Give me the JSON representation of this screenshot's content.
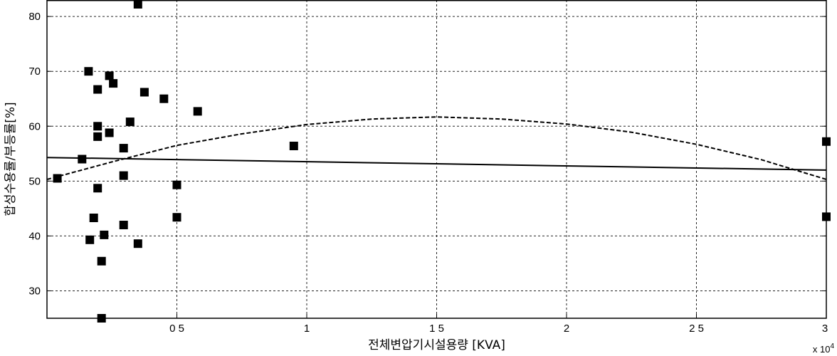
{
  "chart_data": {
    "type": "scatter",
    "title": "",
    "xlabel": "전체변압기시설용량 [KVA]",
    "ylabel": "합성수용률/부등률[%]",
    "x_multiplier_label": "x 10",
    "x_multiplier_exponent": "4",
    "xlim": [
      0,
      30000
    ],
    "ylim": [
      25,
      83
    ],
    "x_ticks": [
      {
        "value": 5000,
        "label": "0 5"
      },
      {
        "value": 10000,
        "label": "1"
      },
      {
        "value": 15000,
        "label": "1 5"
      },
      {
        "value": 20000,
        "label": "2"
      },
      {
        "value": 25000,
        "label": "2 5"
      },
      {
        "value": 30000,
        "label": "3"
      }
    ],
    "y_ticks": [
      {
        "value": 30,
        "label": "30"
      },
      {
        "value": 40,
        "label": "40"
      },
      {
        "value": 50,
        "label": "50"
      },
      {
        "value": 60,
        "label": "60"
      },
      {
        "value": 70,
        "label": "70"
      },
      {
        "value": 80,
        "label": "80"
      }
    ],
    "grid": true,
    "points": [
      {
        "x": 400,
        "y": 50.5
      },
      {
        "x": 1350,
        "y": 54.0
      },
      {
        "x": 1600,
        "y": 70.0
      },
      {
        "x": 1650,
        "y": 39.3
      },
      {
        "x": 1800,
        "y": 43.3
      },
      {
        "x": 1950,
        "y": 66.7
      },
      {
        "x": 1950,
        "y": 60.0
      },
      {
        "x": 1950,
        "y": 58.1
      },
      {
        "x": 1950,
        "y": 48.7
      },
      {
        "x": 2100,
        "y": 35.4
      },
      {
        "x": 2100,
        "y": 25.0
      },
      {
        "x": 2200,
        "y": 40.2
      },
      {
        "x": 2400,
        "y": 69.2
      },
      {
        "x": 2400,
        "y": 58.8
      },
      {
        "x": 2550,
        "y": 67.8
      },
      {
        "x": 2950,
        "y": 56.0
      },
      {
        "x": 2950,
        "y": 51.0
      },
      {
        "x": 2950,
        "y": 42.0
      },
      {
        "x": 3200,
        "y": 60.8
      },
      {
        "x": 3500,
        "y": 38.6
      },
      {
        "x": 3500,
        "y": 82.8
      },
      {
        "x": 3750,
        "y": 66.2
      },
      {
        "x": 4500,
        "y": 65.0
      },
      {
        "x": 5000,
        "y": 49.3
      },
      {
        "x": 5000,
        "y": 43.4
      },
      {
        "x": 5800,
        "y": 62.7
      },
      {
        "x": 9500,
        "y": 56.4
      },
      {
        "x": 30000,
        "y": 57.2
      },
      {
        "x": 30000,
        "y": 43.5
      }
    ],
    "series": [
      {
        "style": "solid",
        "x": [
          0,
          30000
        ],
        "y": [
          54.3,
          52.0
        ]
      },
      {
        "style": "dashed",
        "x": [
          0,
          2500,
          5000,
          7500,
          10000,
          12500,
          15000,
          17500,
          20000,
          22500,
          25000,
          27500,
          30000
        ],
        "y": [
          50.3,
          53.5,
          56.5,
          58.6,
          60.3,
          61.3,
          61.7,
          61.3,
          60.4,
          58.9,
          56.7,
          53.9,
          50.3
        ]
      }
    ],
    "colors": {
      "marker": "#000000",
      "line": "#000000",
      "grid": "#000000",
      "frame": "#000000"
    }
  }
}
